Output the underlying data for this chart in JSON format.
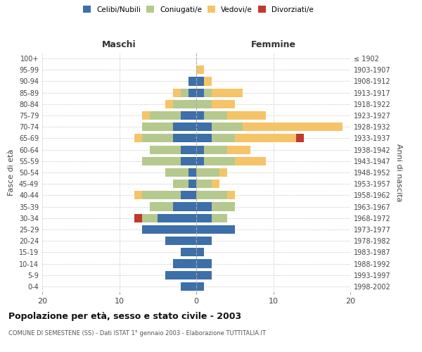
{
  "age_groups": [
    "100+",
    "95-99",
    "90-94",
    "85-89",
    "80-84",
    "75-79",
    "70-74",
    "65-69",
    "60-64",
    "55-59",
    "50-54",
    "45-49",
    "40-44",
    "35-39",
    "30-34",
    "25-29",
    "20-24",
    "15-19",
    "10-14",
    "5-9",
    "0-4"
  ],
  "birth_years": [
    "≤ 1902",
    "1903-1907",
    "1908-1912",
    "1913-1917",
    "1918-1922",
    "1923-1927",
    "1928-1932",
    "1933-1937",
    "1938-1942",
    "1943-1947",
    "1948-1952",
    "1953-1957",
    "1958-1962",
    "1963-1967",
    "1968-1972",
    "1973-1977",
    "1978-1982",
    "1983-1987",
    "1988-1992",
    "1993-1997",
    "1998-2002"
  ],
  "males": {
    "celibi": [
      0,
      0,
      1,
      1,
      0,
      2,
      3,
      3,
      2,
      2,
      1,
      1,
      2,
      3,
      5,
      7,
      4,
      2,
      3,
      4,
      2
    ],
    "coniugati": [
      0,
      0,
      0,
      1,
      3,
      4,
      4,
      4,
      4,
      5,
      3,
      2,
      5,
      3,
      2,
      0,
      0,
      0,
      0,
      0,
      0
    ],
    "vedovi": [
      0,
      0,
      0,
      1,
      1,
      1,
      0,
      1,
      0,
      0,
      0,
      0,
      1,
      0,
      0,
      0,
      0,
      0,
      0,
      0,
      0
    ],
    "divorziati": [
      0,
      0,
      0,
      0,
      0,
      0,
      0,
      0,
      0,
      0,
      0,
      0,
      0,
      0,
      1,
      0,
      0,
      0,
      0,
      0,
      0
    ]
  },
  "females": {
    "nubili": [
      0,
      0,
      1,
      1,
      0,
      1,
      2,
      2,
      1,
      1,
      0,
      0,
      0,
      2,
      2,
      5,
      2,
      1,
      2,
      2,
      1
    ],
    "coniugate": [
      0,
      0,
      0,
      1,
      2,
      3,
      4,
      3,
      3,
      4,
      3,
      2,
      4,
      3,
      2,
      0,
      0,
      0,
      0,
      0,
      0
    ],
    "vedove": [
      0,
      1,
      1,
      4,
      3,
      5,
      13,
      8,
      3,
      4,
      1,
      1,
      1,
      0,
      0,
      0,
      0,
      0,
      0,
      0,
      0
    ],
    "divorziate": [
      0,
      0,
      0,
      0,
      0,
      0,
      0,
      1,
      0,
      0,
      0,
      0,
      0,
      0,
      0,
      0,
      0,
      0,
      0,
      0,
      0
    ]
  },
  "colors": {
    "celibi_nubili": "#3d6fa8",
    "coniugati": "#b5c98e",
    "vedovi": "#f5c469",
    "divorziati": "#c0392b"
  },
  "xlim": [
    -20,
    20
  ],
  "xticks": [
    -20,
    -10,
    0,
    10,
    20
  ],
  "xticklabels": [
    "20",
    "10",
    "0",
    "10",
    "20"
  ],
  "title": "Popolazione per età, sesso e stato civile - 2003",
  "subtitle": "COMUNE DI SEMESTENE (SS) - Dati ISTAT 1° gennaio 2003 - Elaborazione TUTTITALIA.IT",
  "ylabel_left": "Fasce di età",
  "ylabel_right": "Anni di nascita",
  "header_maschi": "Maschi",
  "header_femmine": "Femmine",
  "legend_labels": [
    "Celibi/Nubili",
    "Coniugati/e",
    "Vedovi/e",
    "Divorziati/e"
  ],
  "background_color": "#ffffff",
  "grid_color": "#cccccc"
}
